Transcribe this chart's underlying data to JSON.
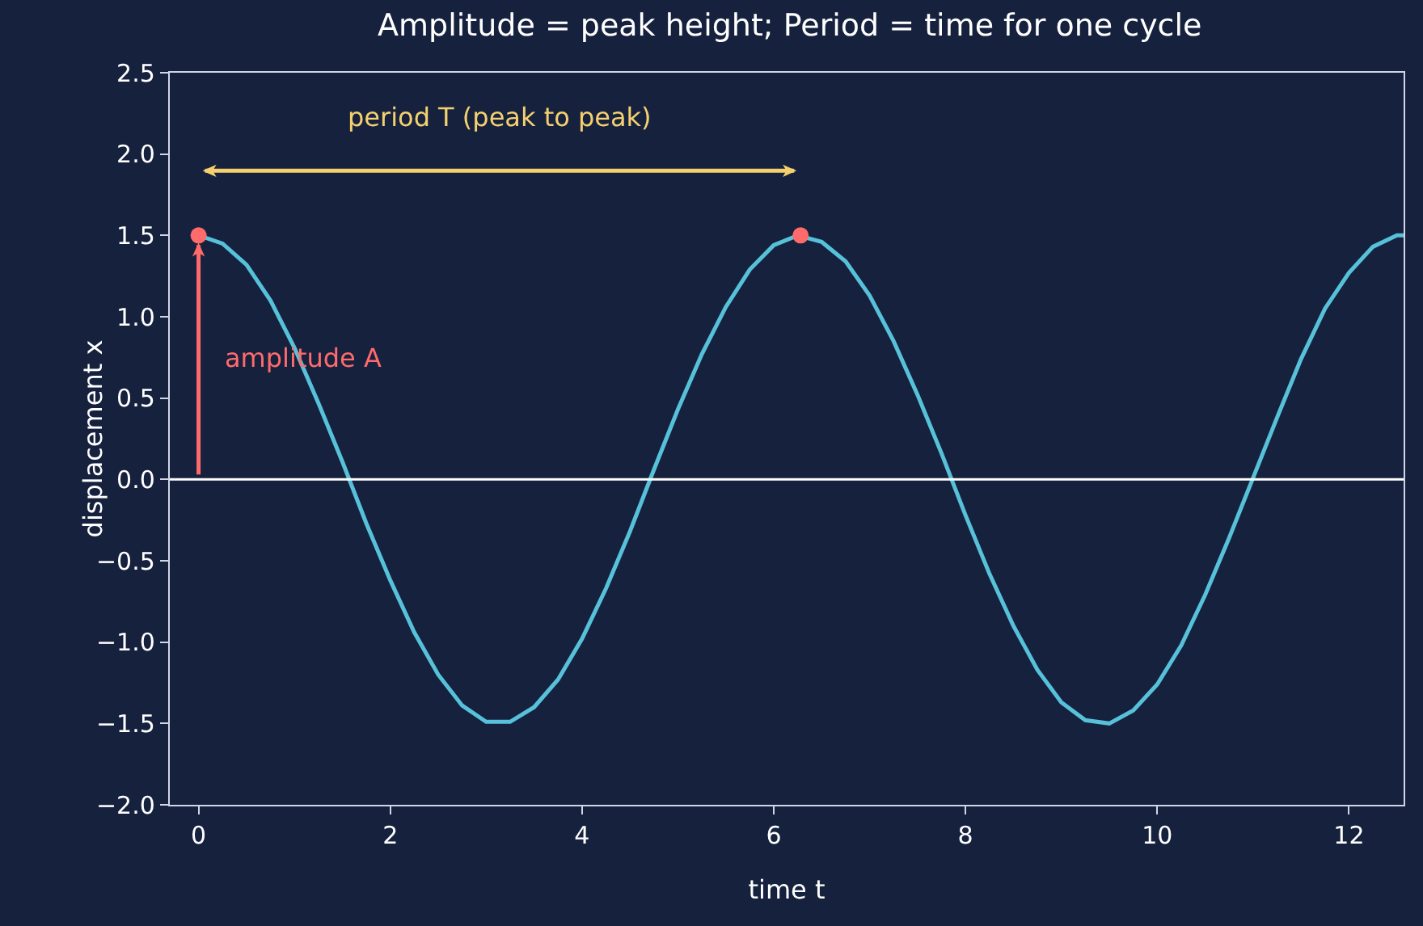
{
  "chart_data": {
    "type": "line",
    "title": "Amplitude = peak height; Period = time for one cycle",
    "xlabel": "time t",
    "ylabel": "displacement x",
    "xlim": [
      -0.3,
      12.57
    ],
    "xticks": [
      0,
      2,
      4,
      6,
      8,
      10,
      12
    ],
    "ylim": [
      -2,
      2.5
    ],
    "yticks": [
      {
        "value": -2,
        "label": "−2.0"
      },
      {
        "value": -1.5,
        "label": "−1.5"
      },
      {
        "value": -1,
        "label": "−1.0"
      },
      {
        "value": -0.5,
        "label": "−0.5"
      },
      {
        "value": 0,
        "label": "0.0"
      },
      {
        "value": 0.5,
        "label": "0.5"
      },
      {
        "value": 1,
        "label": "1.0"
      },
      {
        "value": 1.5,
        "label": "1.5"
      },
      {
        "value": 2,
        "label": "2.0"
      },
      {
        "value": 2.5,
        "label": "2.5"
      }
    ],
    "grid": false,
    "series": [
      {
        "color": "#56c1d9",
        "x": [
          0,
          0.25,
          0.5,
          0.75,
          1,
          1.25,
          1.5,
          1.75,
          2,
          2.25,
          2.5,
          2.75,
          3,
          3.25,
          3.5,
          3.75,
          4,
          4.25,
          4.5,
          4.75,
          5,
          5.25,
          5.5,
          5.75,
          6,
          6.25,
          6.5,
          6.75,
          7,
          7.25,
          7.5,
          7.75,
          8,
          8.25,
          8.5,
          8.75,
          9,
          9.25,
          9.5,
          9.75,
          10,
          10.25,
          10.5,
          10.75,
          11,
          11.25,
          11.5,
          11.75,
          12,
          12.25,
          12.5,
          12.57
        ],
        "values": [
          1.5,
          1.45,
          1.32,
          1.1,
          0.81,
          0.47,
          0.11,
          -0.27,
          -0.62,
          -0.94,
          -1.2,
          -1.39,
          -1.49,
          -1.49,
          -1.4,
          -1.23,
          -0.98,
          -0.67,
          -0.32,
          0.06,
          0.43,
          0.77,
          1.06,
          1.29,
          1.44,
          1.5,
          1.46,
          1.34,
          1.13,
          0.85,
          0.52,
          0.16,
          -0.22,
          -0.58,
          -0.9,
          -1.17,
          -1.37,
          -1.48,
          -1.5,
          -1.42,
          -1.26,
          -1.02,
          -0.71,
          -0.36,
          0.01,
          0.38,
          0.74,
          1.05,
          1.27,
          1.43,
          1.5,
          1.5
        ]
      },
      {
        "type": "scatter",
        "color": "#ff6b6b",
        "marker": "circle",
        "x": [
          0,
          6.28
        ],
        "values": [
          1.5,
          1.5
        ]
      }
    ],
    "ref_lines": [
      {
        "axis": "y",
        "value": 0,
        "color": "#ffffff"
      }
    ],
    "annotations": [
      "period T (peak to peak)",
      "amplitude A"
    ]
  }
}
